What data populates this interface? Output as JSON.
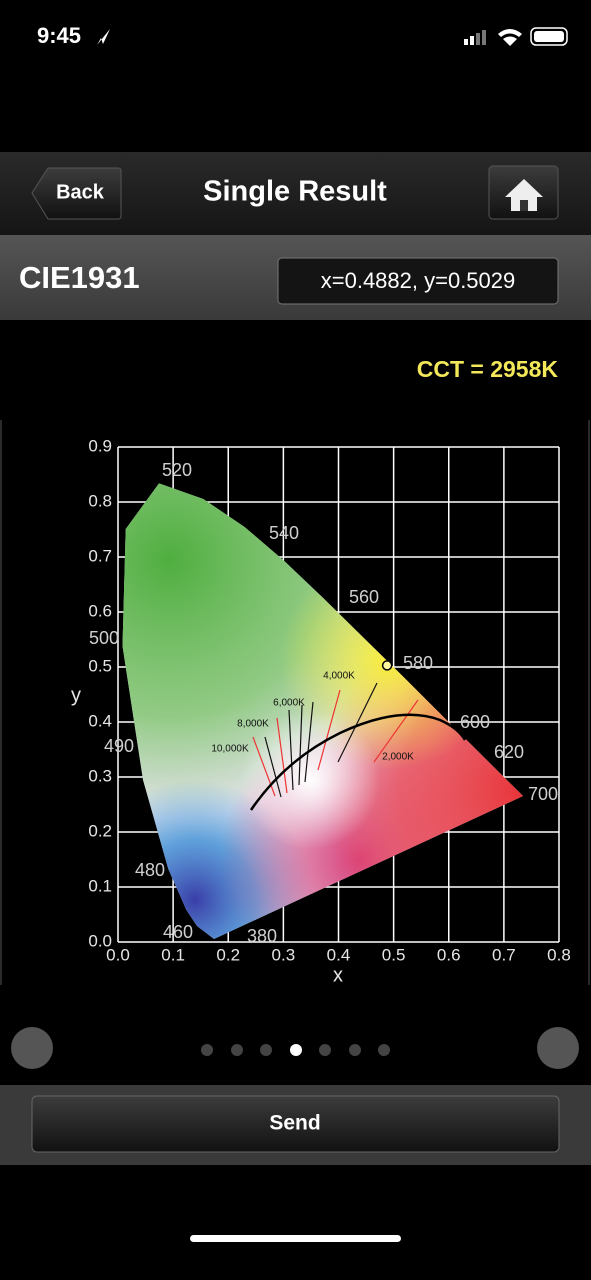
{
  "status_bar": {
    "time": "9:45"
  },
  "nav": {
    "back": "Back",
    "title": "Single Result"
  },
  "header": {
    "label": "CIE1931",
    "coordinates": "x=0.4882, y=0.5029"
  },
  "cct": "CCT = 2958K",
  "chart_data": {
    "type": "scatter",
    "x_label": "x",
    "y_label": "y",
    "x": [
      0.4882
    ],
    "values": [
      0.5029
    ],
    "color": "#fff7a0",
    "xlim": [
      0,
      0.8
    ],
    "ylim": [
      0,
      0.9
    ],
    "xticks": [
      {
        "value": 0,
        "label": "0.0"
      },
      0.1,
      0.2,
      0.3,
      0.4,
      0.5,
      0.6,
      0.7,
      0.8
    ],
    "yticks": [
      {
        "value": 0,
        "label": "0.0"
      },
      0.1,
      0.2,
      0.3,
      0.4,
      0.5,
      0.6,
      0.7,
      0.8,
      0.9
    ],
    "grid": true,
    "wavelength_labels": [
      520,
      540,
      560,
      580,
      600,
      620,
      700,
      500,
      490,
      480,
      460,
      380
    ],
    "cct_labels": [
      "10,000K",
      "8,000K",
      "6,000K",
      "4,000K",
      "2,000K"
    ]
  },
  "send": "Send"
}
